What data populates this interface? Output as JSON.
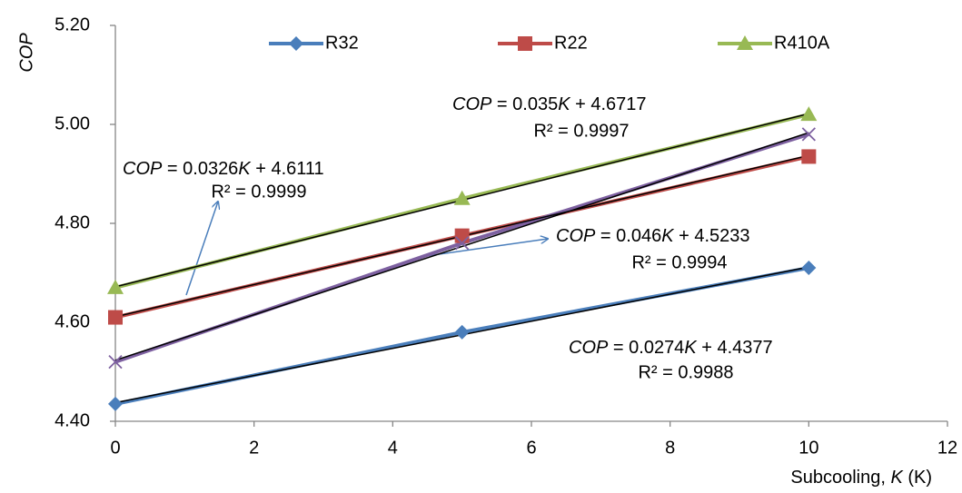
{
  "chart_data": {
    "type": "line",
    "ylabel": "COP",
    "xlabel": [
      "Subcooling, ",
      "K",
      " (K)"
    ],
    "x": [
      0,
      5,
      10
    ],
    "xlim": [
      0,
      12
    ],
    "xticks": [
      0,
      2,
      4,
      6,
      8,
      10,
      12
    ],
    "ylim": [
      4.4,
      5.2
    ],
    "yticks": [
      {
        "value": 4.4,
        "label": "4.40"
      },
      {
        "value": 4.6,
        "label": "4.60"
      },
      {
        "value": 4.8,
        "label": "4.80"
      },
      {
        "value": 5.0,
        "label": "5.00"
      },
      {
        "value": 5.2,
        "label": "5.20"
      }
    ],
    "series": [
      {
        "name": "R32",
        "color": "#4a7ebb",
        "marker": "diamond",
        "values": [
          4.435,
          4.58,
          4.71
        ],
        "trend": {
          "slope": 0.0274,
          "intercept": 4.4377
        }
      },
      {
        "name": "R22",
        "color": "#be4b48",
        "marker": "square",
        "values": [
          4.61,
          4.775,
          4.935
        ],
        "trend": {
          "slope": 0.0326,
          "intercept": 4.6111
        }
      },
      {
        "name": "R410A",
        "color": "#98b954",
        "marker": "triangle",
        "values": [
          4.67,
          4.85,
          5.02
        ],
        "trend": {
          "slope": 0.035,
          "intercept": 4.6717
        }
      },
      {
        "color": "#7d60a0",
        "marker": "x",
        "values": [
          4.52,
          4.76,
          4.98
        ],
        "trend": {
          "slope": 0.046,
          "intercept": 4.5233
        }
      }
    ],
    "annotations": [
      {
        "lhs": "COP",
        "coef": " = 0.0326",
        "var": "K",
        "const": " + 4.6111",
        "r2": "R² = 0.9999"
      },
      {
        "lhs": "COP",
        "coef": " = 0.035",
        "var": "K",
        "const": " + 4.6717",
        "r2": "R² = 0.9997"
      },
      {
        "lhs": "COP",
        "coef": " = 0.046",
        "var": "K",
        "const": " + 4.5233",
        "r2": "R² = 0.9994"
      },
      {
        "lhs": "COP",
        "coef": " = 0.0274",
        "var": "K",
        "const": " + 4.4377",
        "r2": "R² = 0.9988"
      }
    ]
  }
}
